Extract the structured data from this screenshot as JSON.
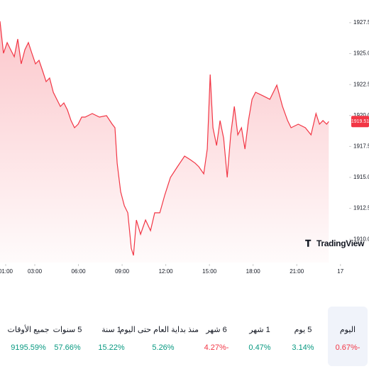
{
  "chart_data": {
    "type": "area",
    "color": "#f23645",
    "x": [
      0.61,
      0.85,
      1.1,
      1.34,
      1.59,
      1.83,
      2.07,
      2.32,
      2.56,
      2.8,
      3.05,
      3.29,
      3.54,
      3.78,
      4.02,
      4.27,
      4.51,
      4.76,
      5.0,
      5.24,
      5.49,
      5.73,
      5.98,
      6.22,
      6.46,
      6.95,
      7.44,
      7.93,
      8.32,
      8.51,
      8.66,
      8.9,
      9.15,
      9.39,
      9.63,
      9.78,
      9.98,
      10.27,
      10.61,
      10.95,
      11.24,
      11.59,
      11.93,
      12.32,
      12.8,
      13.29,
      13.68,
      14.02,
      14.27,
      14.61,
      14.85,
      15.05,
      15.24,
      15.49,
      15.73,
      15.98,
      16.22,
      16.46,
      16.71,
      16.95,
      17.2,
      17.44,
      17.68,
      17.93,
      18.17,
      18.66,
      19.15,
      19.63,
      20.02,
      20.37,
      20.61,
      21.1,
      21.59,
      21.98,
      22.32,
      22.56,
      22.8,
      23.05,
      23.2
    ],
    "values": [
      1927.61,
      1925.03,
      1925.89,
      1925.32,
      1924.75,
      1926.18,
      1924.17,
      1925.32,
      1925.89,
      1925.03,
      1924.17,
      1924.46,
      1923.6,
      1922.74,
      1923.03,
      1921.88,
      1921.31,
      1920.73,
      1921.02,
      1920.45,
      1919.59,
      1919.01,
      1919.3,
      1919.87,
      1919.87,
      1920.16,
      1919.87,
      1919.99,
      1919.3,
      1919.01,
      1916.15,
      1913.85,
      1912.71,
      1912.14,
      1909.27,
      1908.7,
      1911.56,
      1910.41,
      1911.56,
      1910.7,
      1912.14,
      1912.14,
      1913.57,
      1915.0,
      1915.86,
      1916.72,
      1916.43,
      1916.15,
      1915.86,
      1915.29,
      1917.29,
      1923.31,
      1919.01,
      1917.58,
      1919.59,
      1918.15,
      1915.0,
      1918.44,
      1920.73,
      1918.44,
      1919.01,
      1917.29,
      1919.59,
      1921.31,
      1921.88,
      1921.6,
      1921.31,
      1922.45,
      1920.73,
      1919.59,
      1919.01,
      1919.3,
      1919.01,
      1918.44,
      1920.16,
      1919.3,
      1919.59,
      1919.3,
      1919.51
    ],
    "xlim": [
      0.61,
      24.5
    ],
    "ylim": [
      1908.12,
      1929.33
    ],
    "xticks": [
      {
        "value": 1,
        "label": "01:00"
      },
      {
        "value": 3,
        "label": "03:00"
      },
      {
        "value": 6,
        "label": "06:00"
      },
      {
        "value": 9,
        "label": "09:00"
      },
      {
        "value": 12,
        "label": "12:00"
      },
      {
        "value": 15,
        "label": "15:00"
      },
      {
        "value": 18,
        "label": "18:00"
      },
      {
        "value": 21,
        "label": "21:00"
      },
      {
        "value": 24,
        "label": "17"
      }
    ],
    "yticks": [
      {
        "value": 1910,
        "label": "1910.00"
      },
      {
        "value": 1912.5,
        "label": "1912.50"
      },
      {
        "value": 1915,
        "label": "1915.00"
      },
      {
        "value": 1917.5,
        "label": "1917.50"
      },
      {
        "value": 1920,
        "label": "1920.00"
      },
      {
        "value": 1922.5,
        "label": "1922.50"
      },
      {
        "value": 1925,
        "label": "1925.00"
      },
      {
        "value": 1927.5,
        "label": "1927.50"
      }
    ],
    "brand": "TradingView"
  },
  "performance": [
    {
      "label": "اليوم",
      "change": "-0.67%",
      "color": "#f23645",
      "selected": true
    },
    {
      "label": "5 يوم",
      "change": "3.14%",
      "color": "#089981"
    },
    {
      "label": "1 شهر",
      "change": "0.47%",
      "color": "#089981"
    },
    {
      "label": "6 شهر",
      "change": "-4.27%",
      "color": "#f23645"
    },
    {
      "label": "منذ بداية العام حتى اليوم",
      "change": "5.26%",
      "color": "#089981"
    },
    {
      "label": "1 سنة",
      "change": "15.22%",
      "color": "#089981"
    },
    {
      "label": "5 سنوات",
      "change": "57.66%",
      "color": "#089981"
    },
    {
      "label": "جميع الأوقات",
      "change": "9195.59%",
      "color": "#089981"
    }
  ]
}
